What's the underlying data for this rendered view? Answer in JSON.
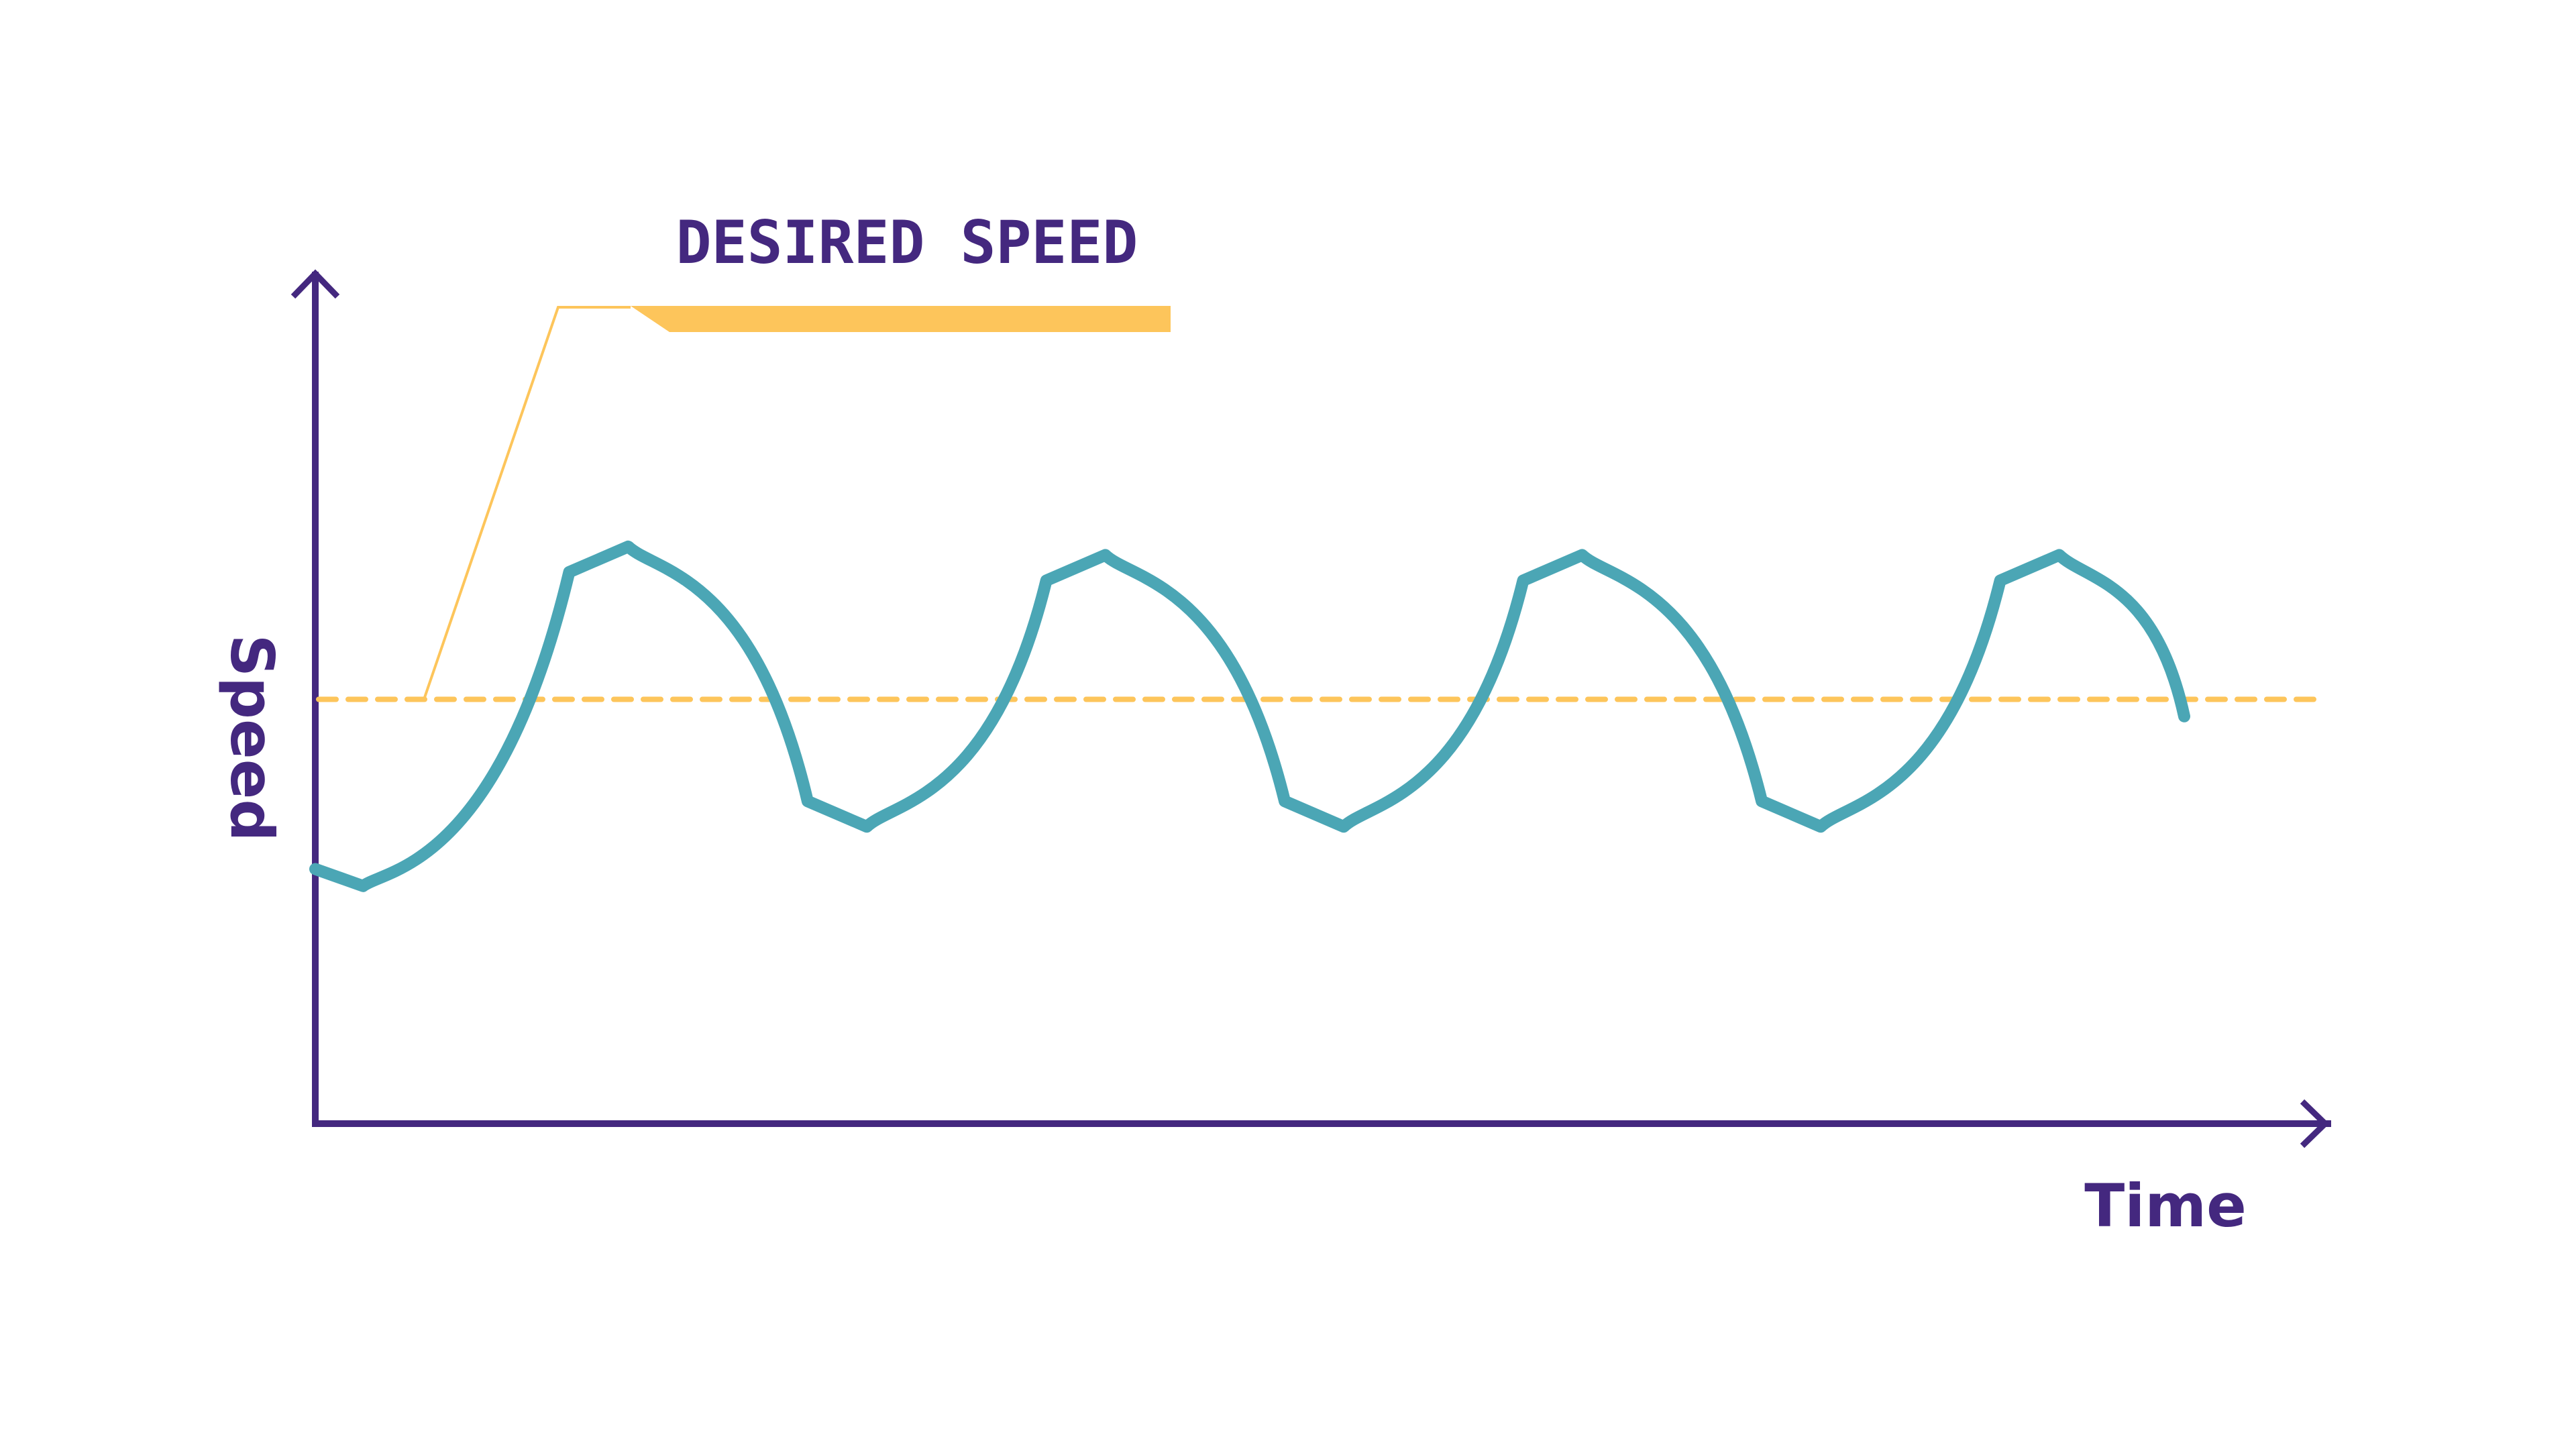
{
  "colors": {
    "axis": "#44287f",
    "text": "#44287f",
    "actual_speed": "#4ba6b5",
    "desired_speed": "#fdc55b",
    "background": "#ffffff"
  },
  "chart_data": {
    "type": "line",
    "xlabel": "Time",
    "ylabel": "Speed",
    "xlim": [
      0,
      1
    ],
    "ylim": [
      0,
      1
    ],
    "grid": false,
    "legend": "none",
    "reference_lines": [
      {
        "label": "DESIRED SPEED",
        "y": 0.5,
        "style": "dashed"
      }
    ],
    "series": [
      {
        "values": [
          [
            0.0,
            0.3
          ],
          [
            0.0247,
            0.28
          ],
          [
            0.0495,
            0.3
          ],
          [
            0.1312,
            0.65
          ],
          [
            0.1617,
            0.68
          ],
          [
            0.1922,
            0.65
          ],
          [
            0.2544,
            0.38
          ],
          [
            0.285,
            0.35
          ],
          [
            0.3155,
            0.38
          ],
          [
            0.3777,
            0.64
          ],
          [
            0.4082,
            0.67
          ],
          [
            0.4387,
            0.64
          ],
          [
            0.5009,
            0.38
          ],
          [
            0.5314,
            0.35
          ],
          [
            0.5619,
            0.38
          ],
          [
            0.6241,
            0.64
          ],
          [
            0.6546,
            0.67
          ],
          [
            0.6852,
            0.64
          ],
          [
            0.7474,
            0.38
          ],
          [
            0.7779,
            0.35
          ],
          [
            0.8084,
            0.38
          ],
          [
            0.8706,
            0.64
          ],
          [
            0.9011,
            0.67
          ],
          [
            0.9316,
            0.64
          ],
          [
            0.9657,
            0.48
          ]
        ]
      }
    ]
  }
}
